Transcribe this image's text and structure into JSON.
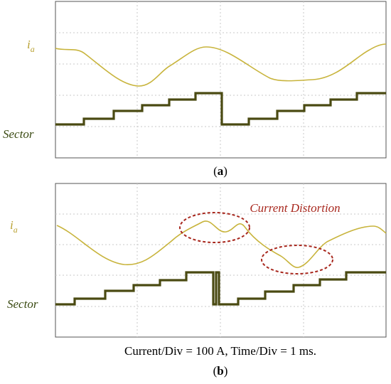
{
  "panels": [
    {
      "signal_label": {
        "symbol": "i",
        "subscript": "a"
      },
      "sector_label": "Sector",
      "caption": {
        "open": "(",
        "letter": "a",
        "close": ")"
      }
    },
    {
      "signal_label": {
        "symbol": "i",
        "subscript": "a"
      },
      "sector_label": "Sector",
      "caption": {
        "open": "(",
        "letter": "b",
        "close": ")"
      },
      "annotation": "Current Distortion",
      "settings": "Current/Div = 100 A, Time/Div = 1 ms."
    }
  ]
}
